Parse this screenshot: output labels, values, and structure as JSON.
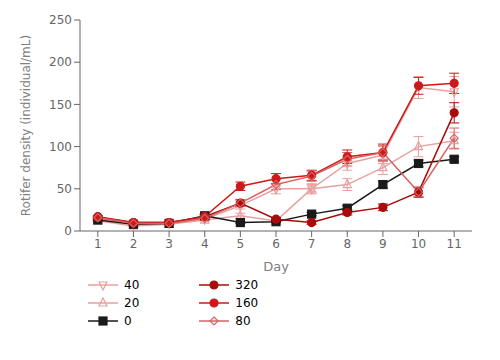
{
  "chart_data": {
    "type": "line",
    "xlabel": "Day",
    "ylabel": "Rotifer density (individual/mL)",
    "x": [
      1,
      2,
      3,
      4,
      5,
      6,
      7,
      8,
      9,
      10,
      11
    ],
    "xlim": [
      0.5,
      11.5
    ],
    "xticks": [
      1,
      2,
      3,
      4,
      5,
      6,
      7,
      8,
      9,
      10,
      11
    ],
    "ylim": [
      0,
      250
    ],
    "yticks": [
      0,
      50,
      100,
      150,
      200,
      250
    ],
    "grid": false,
    "legend": "bottom",
    "series": [
      {
        "name": "40",
        "color": "#e8a0a0",
        "marker": "triangle-down-open",
        "line_style": "solid",
        "values": [
          15,
          8,
          9,
          14,
          30,
          50,
          50,
          80,
          90,
          170,
          165
        ],
        "errors": [
          1,
          1,
          1,
          2,
          4,
          6,
          6,
          8,
          10,
          13,
          18
        ]
      },
      {
        "name": "20",
        "color": "#e8a0a0",
        "marker": "triangle-up-open",
        "line_style": "solid",
        "values": [
          12,
          6,
          8,
          13,
          18,
          12,
          50,
          55,
          75,
          100,
          107
        ],
        "errors": [
          1,
          1,
          1,
          1,
          3,
          2,
          5,
          7,
          8,
          12,
          10
        ]
      },
      {
        "name": "0",
        "color": "#1a1a1a",
        "marker": "square",
        "line_style": "solid",
        "values": [
          13,
          8,
          9,
          18,
          10,
          11,
          20,
          27,
          55,
          80,
          85
        ],
        "errors": [
          1,
          1,
          1,
          2,
          1,
          1,
          2,
          3,
          4,
          4,
          3
        ]
      },
      {
        "name": "320",
        "color": "#aa0a0a",
        "marker": "circle",
        "line_style": "solid",
        "values": [
          17,
          10,
          10,
          17,
          33,
          14,
          10,
          22,
          28,
          46,
          140
        ],
        "errors": [
          1,
          1,
          1,
          2,
          4,
          2,
          2,
          3,
          4,
          6,
          12
        ]
      },
      {
        "name": "160",
        "color": "#cc1a1a",
        "marker": "circle",
        "line_style": "solid",
        "values": [
          16,
          10,
          10,
          17,
          53,
          62,
          66,
          88,
          93,
          172,
          175
        ],
        "errors": [
          1,
          1,
          1,
          2,
          5,
          6,
          6,
          8,
          10,
          10,
          12
        ]
      },
      {
        "name": "80",
        "color": "#d96060",
        "marker": "diamond-open",
        "line_style": "solid",
        "values": [
          16,
          9,
          9,
          15,
          33,
          55,
          65,
          85,
          93,
          46,
          110
        ],
        "errors": [
          1,
          1,
          1,
          2,
          4,
          6,
          6,
          8,
          8,
          5,
          12
        ]
      }
    ]
  }
}
